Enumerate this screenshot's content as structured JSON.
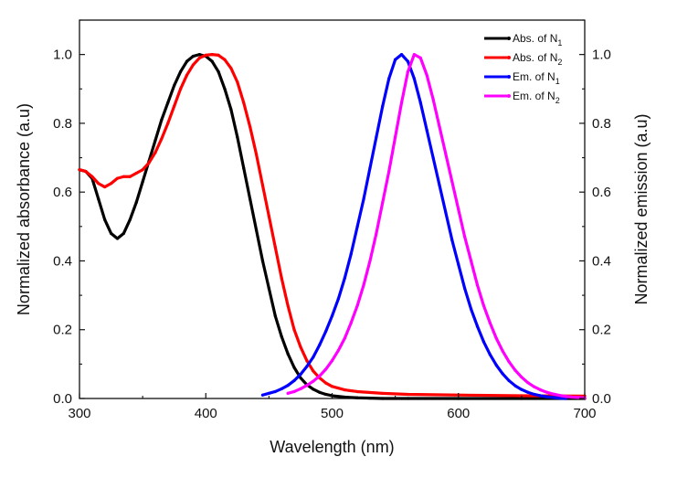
{
  "chart_data": {
    "type": "line",
    "xlabel": "Wavelength (nm)",
    "ylabel": "Normalized absorbance (a.u)",
    "y2label": "Normalized emission (a.u)",
    "xlim": [
      300,
      700
    ],
    "ylim": [
      0,
      1.1
    ],
    "y2lim": [
      0,
      1.1
    ],
    "x_ticks": [
      "300",
      "400",
      "500",
      "600",
      "700"
    ],
    "y_ticks": [
      "0.0",
      "0.2",
      "0.4",
      "0.6",
      "0.8",
      "1.0"
    ],
    "y2_ticks": [
      "0.0",
      "0.2",
      "0.4",
      "0.6",
      "0.8",
      "1.0"
    ],
    "grid": false,
    "legend_position": "top-right",
    "series": [
      {
        "name": "Abs. of N",
        "subscript": "1",
        "color": "#000000",
        "axis": "left",
        "x": [
          300,
          305,
          310,
          315,
          320,
          325,
          330,
          335,
          340,
          345,
          350,
          355,
          360,
          365,
          370,
          375,
          380,
          385,
          390,
          395,
          400,
          405,
          410,
          415,
          420,
          425,
          430,
          435,
          440,
          445,
          450,
          455,
          460,
          465,
          470,
          475,
          480,
          485,
          490,
          495,
          500,
          510,
          520,
          530,
          540,
          560,
          600,
          650,
          700
        ],
        "y": [
          0.665,
          0.66,
          0.64,
          0.58,
          0.52,
          0.48,
          0.465,
          0.48,
          0.52,
          0.57,
          0.63,
          0.69,
          0.75,
          0.81,
          0.86,
          0.91,
          0.95,
          0.98,
          0.995,
          1.0,
          0.995,
          0.98,
          0.95,
          0.9,
          0.84,
          0.76,
          0.67,
          0.58,
          0.49,
          0.4,
          0.32,
          0.24,
          0.18,
          0.13,
          0.09,
          0.06,
          0.04,
          0.027,
          0.018,
          0.012,
          0.008,
          0.004,
          0.002,
          0.001,
          0.0,
          0.0,
          0.0,
          0.0,
          0.0
        ]
      },
      {
        "name": "Abs. of N",
        "subscript": "2",
        "color": "#ff0000",
        "axis": "left",
        "x": [
          300,
          305,
          310,
          315,
          320,
          325,
          330,
          335,
          340,
          345,
          350,
          355,
          360,
          365,
          370,
          375,
          380,
          385,
          390,
          395,
          400,
          405,
          410,
          415,
          420,
          425,
          430,
          435,
          440,
          445,
          450,
          455,
          460,
          465,
          470,
          475,
          480,
          485,
          490,
          495,
          500,
          510,
          520,
          540,
          560,
          600,
          650,
          700
        ],
        "y": [
          0.665,
          0.66,
          0.645,
          0.625,
          0.615,
          0.625,
          0.64,
          0.645,
          0.645,
          0.655,
          0.665,
          0.685,
          0.715,
          0.755,
          0.8,
          0.85,
          0.9,
          0.94,
          0.97,
          0.99,
          0.998,
          1.0,
          0.998,
          0.985,
          0.96,
          0.92,
          0.86,
          0.79,
          0.71,
          0.62,
          0.53,
          0.44,
          0.35,
          0.27,
          0.2,
          0.15,
          0.11,
          0.08,
          0.06,
          0.045,
          0.035,
          0.025,
          0.02,
          0.015,
          0.012,
          0.01,
          0.008,
          0.007
        ]
      },
      {
        "name": "Em. of N",
        "subscript": "1",
        "color": "#0000ff",
        "axis": "right",
        "x": [
          445,
          450,
          455,
          460,
          465,
          470,
          475,
          480,
          485,
          490,
          495,
          500,
          505,
          510,
          515,
          520,
          525,
          530,
          535,
          540,
          545,
          550,
          555,
          560,
          565,
          570,
          575,
          580,
          585,
          590,
          595,
          600,
          605,
          610,
          615,
          620,
          625,
          630,
          635,
          640,
          645,
          650,
          655,
          660,
          665,
          670,
          675,
          680,
          685
        ],
        "y": [
          0.01,
          0.015,
          0.02,
          0.028,
          0.038,
          0.052,
          0.07,
          0.093,
          0.12,
          0.155,
          0.195,
          0.24,
          0.29,
          0.35,
          0.42,
          0.5,
          0.58,
          0.67,
          0.76,
          0.85,
          0.93,
          0.985,
          1.0,
          0.98,
          0.93,
          0.86,
          0.78,
          0.7,
          0.62,
          0.54,
          0.46,
          0.39,
          0.32,
          0.26,
          0.21,
          0.165,
          0.128,
          0.097,
          0.072,
          0.052,
          0.037,
          0.026,
          0.018,
          0.012,
          0.008,
          0.005,
          0.003,
          0.001,
          0.0
        ]
      },
      {
        "name": "Em. of N",
        "subscript": "2",
        "color": "#ff00ff",
        "axis": "right",
        "x": [
          465,
          470,
          475,
          480,
          485,
          490,
          495,
          500,
          505,
          510,
          515,
          520,
          525,
          530,
          535,
          540,
          545,
          550,
          555,
          560,
          565,
          570,
          575,
          580,
          585,
          590,
          595,
          600,
          605,
          610,
          615,
          620,
          625,
          630,
          635,
          640,
          645,
          650,
          655,
          660,
          665,
          670,
          675,
          680,
          685,
          690,
          695,
          700
        ],
        "y": [
          0.015,
          0.02,
          0.028,
          0.038,
          0.05,
          0.065,
          0.085,
          0.11,
          0.14,
          0.175,
          0.22,
          0.27,
          0.33,
          0.4,
          0.48,
          0.57,
          0.66,
          0.76,
          0.86,
          0.95,
          1.0,
          0.99,
          0.94,
          0.87,
          0.79,
          0.71,
          0.63,
          0.55,
          0.47,
          0.4,
          0.33,
          0.27,
          0.22,
          0.175,
          0.138,
          0.107,
          0.082,
          0.062,
          0.046,
          0.034,
          0.025,
          0.018,
          0.013,
          0.009,
          0.006,
          0.004,
          0.003,
          0.002
        ]
      }
    ]
  }
}
